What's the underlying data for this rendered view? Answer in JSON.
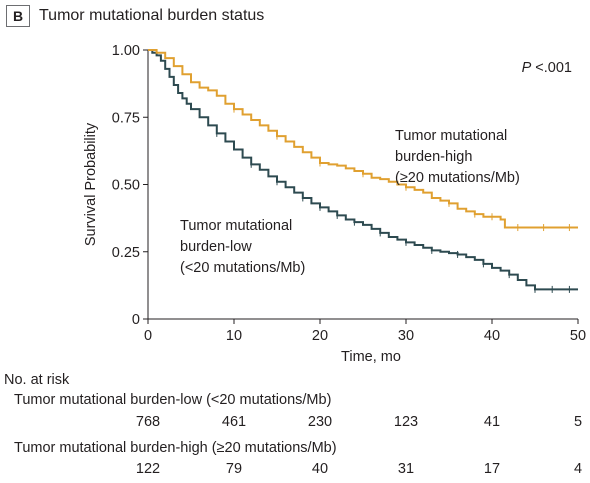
{
  "panel": {
    "letter": "B",
    "title": "Tumor mutational burden status"
  },
  "chart_data": {
    "type": "line",
    "xlabel": "Time, mo",
    "ylabel": "Survival Probability",
    "xlim": [
      0,
      50
    ],
    "ylim": [
      0,
      1
    ],
    "x_ticks": [
      "0",
      "10",
      "20",
      "30",
      "40",
      "50"
    ],
    "y_ticks": [
      "0",
      "0.25",
      "0.50",
      "0.75",
      "1.00"
    ],
    "p_value": {
      "italic": "P",
      "text": " <.001"
    },
    "series": [
      {
        "name_lines": [
          "Tumor mutational",
          "burden-low",
          "(<20 mutations/Mb)"
        ],
        "color": "#2d4a50",
        "points": [
          [
            0,
            1.0
          ],
          [
            0.5,
            0.99
          ],
          [
            1,
            0.98
          ],
          [
            1.5,
            0.96
          ],
          [
            2,
            0.93
          ],
          [
            2.5,
            0.9
          ],
          [
            3,
            0.87
          ],
          [
            3.5,
            0.84
          ],
          [
            4,
            0.82
          ],
          [
            4.5,
            0.8
          ],
          [
            5,
            0.78
          ],
          [
            6,
            0.75
          ],
          [
            7,
            0.72
          ],
          [
            8,
            0.69
          ],
          [
            9,
            0.66
          ],
          [
            10,
            0.63
          ],
          [
            11,
            0.6
          ],
          [
            12,
            0.575
          ],
          [
            13,
            0.555
          ],
          [
            14,
            0.53
          ],
          [
            15,
            0.51
          ],
          [
            16,
            0.49
          ],
          [
            17,
            0.47
          ],
          [
            18,
            0.45
          ],
          [
            19,
            0.43
          ],
          [
            20,
            0.415
          ],
          [
            21,
            0.4
          ],
          [
            22,
            0.385
          ],
          [
            23,
            0.37
          ],
          [
            24,
            0.36
          ],
          [
            25,
            0.35
          ],
          [
            26,
            0.335
          ],
          [
            27,
            0.32
          ],
          [
            28,
            0.305
          ],
          [
            29,
            0.295
          ],
          [
            30,
            0.285
          ],
          [
            31,
            0.275
          ],
          [
            32,
            0.265
          ],
          [
            33,
            0.255
          ],
          [
            34,
            0.25
          ],
          [
            35,
            0.245
          ],
          [
            36,
            0.24
          ],
          [
            37,
            0.23
          ],
          [
            38,
            0.22
          ],
          [
            39,
            0.205
          ],
          [
            40,
            0.19
          ],
          [
            41,
            0.18
          ],
          [
            42,
            0.165
          ],
          [
            43,
            0.145
          ],
          [
            44,
            0.125
          ],
          [
            45,
            0.11
          ],
          [
            50,
            0.11
          ]
        ],
        "censor_points": [
          [
            8,
            0.69
          ],
          [
            12,
            0.575
          ],
          [
            15,
            0.51
          ],
          [
            18,
            0.45
          ],
          [
            20,
            0.415
          ],
          [
            22,
            0.385
          ],
          [
            24,
            0.36
          ],
          [
            27,
            0.32
          ],
          [
            30,
            0.285
          ],
          [
            33,
            0.255
          ],
          [
            36,
            0.24
          ],
          [
            39,
            0.205
          ],
          [
            42,
            0.165
          ],
          [
            45,
            0.11
          ],
          [
            47,
            0.11
          ],
          [
            49,
            0.11
          ]
        ],
        "at_risk": [
          "768",
          "461",
          "230",
          "123",
          "41",
          "5"
        ],
        "at_risk_label": "Tumor mutational burden-low (<20 mutations/Mb)"
      },
      {
        "name_lines": [
          "Tumor mutational",
          "burden-high",
          "(≥20 mutations/Mb)"
        ],
        "color": "#e0a030",
        "points": [
          [
            0,
            1.0
          ],
          [
            1,
            0.99
          ],
          [
            2,
            0.97
          ],
          [
            3,
            0.94
          ],
          [
            4,
            0.91
          ],
          [
            5,
            0.88
          ],
          [
            6,
            0.86
          ],
          [
            7,
            0.85
          ],
          [
            8,
            0.83
          ],
          [
            9,
            0.8
          ],
          [
            10,
            0.78
          ],
          [
            11,
            0.76
          ],
          [
            12,
            0.74
          ],
          [
            13,
            0.72
          ],
          [
            14,
            0.7
          ],
          [
            15,
            0.68
          ],
          [
            16,
            0.66
          ],
          [
            17,
            0.64
          ],
          [
            18,
            0.62
          ],
          [
            19,
            0.6
          ],
          [
            20,
            0.58
          ],
          [
            21,
            0.575
          ],
          [
            22,
            0.57
          ],
          [
            23,
            0.56
          ],
          [
            24,
            0.55
          ],
          [
            25,
            0.54
          ],
          [
            26,
            0.525
          ],
          [
            27,
            0.52
          ],
          [
            28,
            0.51
          ],
          [
            29,
            0.5
          ],
          [
            30,
            0.49
          ],
          [
            31,
            0.48
          ],
          [
            32,
            0.47
          ],
          [
            33,
            0.45
          ],
          [
            34,
            0.44
          ],
          [
            35,
            0.43
          ],
          [
            36,
            0.41
          ],
          [
            37,
            0.4
          ],
          [
            38,
            0.39
          ],
          [
            39,
            0.38
          ],
          [
            40,
            0.38
          ],
          [
            41,
            0.37
          ],
          [
            41.5,
            0.34
          ],
          [
            42,
            0.34
          ],
          [
            50,
            0.34
          ]
        ],
        "censor_points": [
          [
            10,
            0.78
          ],
          [
            15,
            0.68
          ],
          [
            20,
            0.58
          ],
          [
            25,
            0.54
          ],
          [
            30,
            0.49
          ],
          [
            35,
            0.43
          ],
          [
            38,
            0.39
          ],
          [
            40,
            0.38
          ],
          [
            43,
            0.34
          ],
          [
            46,
            0.34
          ],
          [
            49,
            0.34
          ]
        ],
        "at_risk": [
          "122",
          "79",
          "40",
          "31",
          "17",
          "4"
        ],
        "at_risk_label": "Tumor mutational burden-high (≥20 mutations/Mb)"
      }
    ]
  },
  "risk_table": {
    "heading": "No. at risk"
  }
}
